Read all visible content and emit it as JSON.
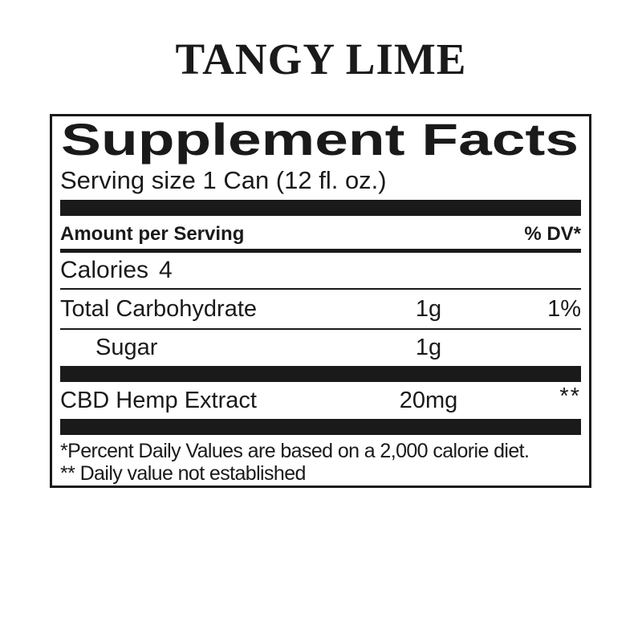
{
  "page": {
    "background": "#ffffff",
    "ink": "#1a1a1a"
  },
  "title": "TANGY LIME",
  "facts": {
    "heading": "Supplement Facts",
    "serving_size": "Serving size 1 Can (12 fl. oz.)",
    "header": {
      "amount": "Amount per Serving",
      "dv": "% DV*"
    },
    "calories": {
      "name": "Calories",
      "value": "4"
    },
    "rows": [
      {
        "name": "Total Carbohydrate",
        "amount": "1g",
        "dv": "1%"
      },
      {
        "name": "Sugar",
        "amount": "1g",
        "dv": ""
      },
      {
        "name": "CBD Hemp Extract",
        "amount": "20mg",
        "dv": "**"
      }
    ],
    "footnotes": [
      "*Percent Daily Values are based on a 2,000 calorie diet.",
      "** Daily value not established"
    ]
  }
}
